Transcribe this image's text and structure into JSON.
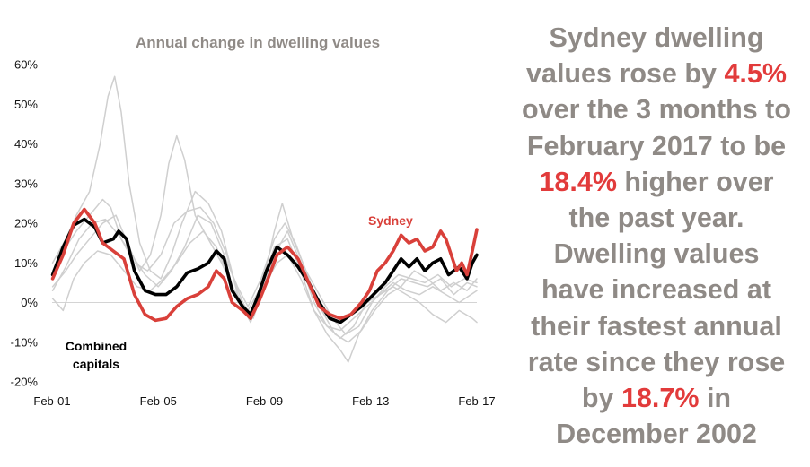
{
  "chart_data": {
    "type": "line",
    "title": "Annual change in dwelling values",
    "xlabel": "",
    "ylabel": "",
    "x_ticks": [
      "Feb-01",
      "Feb-05",
      "Feb-09",
      "Feb-13",
      "Feb-17"
    ],
    "x_range": [
      2001.08,
      2017.17
    ],
    "y_ticks": [
      "-20%",
      "-10%",
      "0%",
      "10%",
      "20%",
      "30%",
      "40%",
      "50%",
      "60%"
    ],
    "ylim": [
      -20,
      60
    ],
    "series": [
      {
        "name": "Sydney",
        "label": "Sydney",
        "color": "#d9403a",
        "points": [
          [
            2001.1,
            6
          ],
          [
            2001.5,
            12
          ],
          [
            2001.9,
            20
          ],
          [
            2002.3,
            23.5
          ],
          [
            2002.7,
            20
          ],
          [
            2003.0,
            15
          ],
          [
            2003.4,
            13
          ],
          [
            2003.8,
            11
          ],
          [
            2004.2,
            2
          ],
          [
            2004.6,
            -3
          ],
          [
            2005.0,
            -4.5
          ],
          [
            2005.4,
            -4
          ],
          [
            2005.8,
            -1
          ],
          [
            2006.2,
            1
          ],
          [
            2006.6,
            2
          ],
          [
            2007.0,
            4
          ],
          [
            2007.3,
            8
          ],
          [
            2007.6,
            6
          ],
          [
            2007.9,
            0
          ],
          [
            2008.3,
            -2
          ],
          [
            2008.6,
            -4
          ],
          [
            2008.9,
            0
          ],
          [
            2009.2,
            5
          ],
          [
            2009.6,
            12
          ],
          [
            2010.0,
            14
          ],
          [
            2010.4,
            11
          ],
          [
            2010.8,
            5
          ],
          [
            2011.2,
            -1
          ],
          [
            2011.6,
            -3
          ],
          [
            2012.0,
            -4
          ],
          [
            2012.4,
            -3
          ],
          [
            2012.8,
            0
          ],
          [
            2013.1,
            3
          ],
          [
            2013.4,
            8
          ],
          [
            2013.7,
            10
          ],
          [
            2014.0,
            13
          ],
          [
            2014.3,
            17
          ],
          [
            2014.6,
            15
          ],
          [
            2014.9,
            16
          ],
          [
            2015.2,
            13
          ],
          [
            2015.5,
            14
          ],
          [
            2015.8,
            18
          ],
          [
            2016.0,
            16
          ],
          [
            2016.2,
            12
          ],
          [
            2016.4,
            8
          ],
          [
            2016.6,
            10
          ],
          [
            2016.8,
            7
          ],
          [
            2017.0,
            13
          ],
          [
            2017.17,
            18.4
          ]
        ]
      },
      {
        "name": "Combined capitals",
        "label": "Combined capitals",
        "color": "#000000",
        "points": [
          [
            2001.1,
            7
          ],
          [
            2001.5,
            14
          ],
          [
            2001.9,
            19.5
          ],
          [
            2002.3,
            21
          ],
          [
            2002.7,
            19
          ],
          [
            2003.0,
            15
          ],
          [
            2003.4,
            16
          ],
          [
            2003.6,
            18
          ],
          [
            2003.9,
            16
          ],
          [
            2004.2,
            8
          ],
          [
            2004.6,
            3
          ],
          [
            2005.0,
            2
          ],
          [
            2005.4,
            2
          ],
          [
            2005.8,
            4
          ],
          [
            2006.2,
            7.5
          ],
          [
            2006.6,
            8.5
          ],
          [
            2007.0,
            10
          ],
          [
            2007.3,
            13
          ],
          [
            2007.6,
            11
          ],
          [
            2007.9,
            3
          ],
          [
            2008.3,
            -1
          ],
          [
            2008.6,
            -3
          ],
          [
            2008.9,
            2
          ],
          [
            2009.2,
            8
          ],
          [
            2009.6,
            14
          ],
          [
            2010.0,
            12
          ],
          [
            2010.4,
            9
          ],
          [
            2010.8,
            5
          ],
          [
            2011.2,
            0
          ],
          [
            2011.6,
            -4
          ],
          [
            2012.0,
            -5
          ],
          [
            2012.4,
            -3
          ],
          [
            2012.8,
            -1
          ],
          [
            2013.1,
            1
          ],
          [
            2013.4,
            3
          ],
          [
            2013.7,
            5
          ],
          [
            2014.0,
            8
          ],
          [
            2014.3,
            11
          ],
          [
            2014.6,
            9
          ],
          [
            2014.9,
            11
          ],
          [
            2015.2,
            8
          ],
          [
            2015.5,
            10
          ],
          [
            2015.8,
            11
          ],
          [
            2016.1,
            7
          ],
          [
            2016.5,
            9
          ],
          [
            2016.8,
            6
          ],
          [
            2017.0,
            10
          ],
          [
            2017.17,
            12
          ]
        ]
      },
      {
        "name": "capital-a",
        "color": "#cfcfcf",
        "points": [
          [
            2001.1,
            10
          ],
          [
            2001.6,
            16
          ],
          [
            2002.0,
            22
          ],
          [
            2002.5,
            28
          ],
          [
            2002.9,
            40
          ],
          [
            2003.2,
            52
          ],
          [
            2003.45,
            57
          ],
          [
            2003.7,
            48
          ],
          [
            2004.0,
            30
          ],
          [
            2004.4,
            15
          ],
          [
            2004.8,
            8
          ],
          [
            2005.2,
            6
          ],
          [
            2005.6,
            12
          ],
          [
            2006.0,
            20
          ],
          [
            2006.5,
            28
          ],
          [
            2007.0,
            25
          ],
          [
            2007.5,
            18
          ],
          [
            2008.0,
            5
          ],
          [
            2008.5,
            -3
          ],
          [
            2009.0,
            2
          ],
          [
            2009.5,
            12
          ],
          [
            2010.0,
            18
          ],
          [
            2010.5,
            10
          ],
          [
            2011.0,
            0
          ],
          [
            2011.5,
            -6
          ],
          [
            2012.0,
            -9
          ],
          [
            2012.5,
            -6
          ],
          [
            2013.0,
            0
          ],
          [
            2013.5,
            2
          ],
          [
            2014.0,
            4
          ],
          [
            2014.5,
            2
          ],
          [
            2015.0,
            0
          ],
          [
            2015.5,
            -3
          ],
          [
            2016.0,
            -5
          ],
          [
            2016.5,
            -2
          ],
          [
            2017.0,
            -4
          ],
          [
            2017.17,
            -5
          ]
        ]
      },
      {
        "name": "capital-b",
        "color": "#cfcfcf",
        "points": [
          [
            2001.1,
            4
          ],
          [
            2001.6,
            8
          ],
          [
            2002.0,
            12
          ],
          [
            2002.5,
            16
          ],
          [
            2003.0,
            20
          ],
          [
            2003.5,
            22
          ],
          [
            2004.0,
            14
          ],
          [
            2004.4,
            8
          ],
          [
            2004.8,
            12
          ],
          [
            2005.2,
            22
          ],
          [
            2005.5,
            35
          ],
          [
            2005.8,
            42
          ],
          [
            2006.1,
            36
          ],
          [
            2006.5,
            22
          ],
          [
            2007.0,
            16
          ],
          [
            2007.5,
            10
          ],
          [
            2008.0,
            3
          ],
          [
            2008.5,
            -2
          ],
          [
            2009.0,
            4
          ],
          [
            2009.5,
            14
          ],
          [
            2010.0,
            16
          ],
          [
            2010.5,
            8
          ],
          [
            2011.0,
            -2
          ],
          [
            2011.5,
            -8
          ],
          [
            2012.0,
            -12
          ],
          [
            2012.3,
            -15
          ],
          [
            2012.7,
            -8
          ],
          [
            2013.2,
            -2
          ],
          [
            2013.8,
            3
          ],
          [
            2014.3,
            6
          ],
          [
            2014.8,
            5
          ],
          [
            2015.3,
            4
          ],
          [
            2015.8,
            6
          ],
          [
            2016.3,
            2
          ],
          [
            2016.8,
            5
          ],
          [
            2017.17,
            4
          ]
        ]
      },
      {
        "name": "capital-c",
        "color": "#cfcfcf",
        "points": [
          [
            2001.1,
            8
          ],
          [
            2001.6,
            14
          ],
          [
            2002.0,
            18
          ],
          [
            2002.5,
            22
          ],
          [
            2003.0,
            26
          ],
          [
            2003.3,
            24
          ],
          [
            2003.7,
            16
          ],
          [
            2004.2,
            10
          ],
          [
            2004.7,
            8
          ],
          [
            2005.2,
            12
          ],
          [
            2005.7,
            20
          ],
          [
            2006.2,
            23
          ],
          [
            2006.7,
            24
          ],
          [
            2007.2,
            20
          ],
          [
            2007.7,
            12
          ],
          [
            2008.2,
            0
          ],
          [
            2008.6,
            -5
          ],
          [
            2009.0,
            3
          ],
          [
            2009.5,
            18
          ],
          [
            2009.8,
            25
          ],
          [
            2010.2,
            16
          ],
          [
            2010.7,
            8
          ],
          [
            2011.2,
            2
          ],
          [
            2011.7,
            -4
          ],
          [
            2012.2,
            -8
          ],
          [
            2012.7,
            -6
          ],
          [
            2013.2,
            0
          ],
          [
            2013.7,
            4
          ],
          [
            2014.2,
            7
          ],
          [
            2014.7,
            6
          ],
          [
            2015.2,
            5
          ],
          [
            2015.7,
            7
          ],
          [
            2016.2,
            4
          ],
          [
            2016.7,
            6
          ],
          [
            2017.17,
            5
          ]
        ]
      },
      {
        "name": "capital-d",
        "color": "#cfcfcf",
        "points": [
          [
            2001.1,
            1
          ],
          [
            2001.5,
            -2
          ],
          [
            2001.9,
            6
          ],
          [
            2002.3,
            10
          ],
          [
            2002.8,
            13
          ],
          [
            2003.3,
            12
          ],
          [
            2003.8,
            8
          ],
          [
            2004.3,
            4
          ],
          [
            2004.8,
            3
          ],
          [
            2005.3,
            6
          ],
          [
            2005.8,
            10
          ],
          [
            2006.3,
            15
          ],
          [
            2006.8,
            18
          ],
          [
            2007.3,
            14
          ],
          [
            2007.8,
            6
          ],
          [
            2008.3,
            -2
          ],
          [
            2008.7,
            -4
          ],
          [
            2009.1,
            4
          ],
          [
            2009.6,
            10
          ],
          [
            2010.0,
            12
          ],
          [
            2010.5,
            6
          ],
          [
            2011.0,
            -2
          ],
          [
            2011.5,
            -6
          ],
          [
            2012.0,
            -7
          ],
          [
            2012.5,
            -4
          ],
          [
            2013.0,
            -1
          ],
          [
            2013.5,
            2
          ],
          [
            2014.0,
            5
          ],
          [
            2014.5,
            3
          ],
          [
            2015.0,
            2
          ],
          [
            2015.5,
            4
          ],
          [
            2016.0,
            2
          ],
          [
            2016.5,
            0
          ],
          [
            2017.17,
            3
          ]
        ]
      },
      {
        "name": "capital-e",
        "color": "#cfcfcf",
        "points": [
          [
            2001.1,
            3
          ],
          [
            2001.6,
            9
          ],
          [
            2002.1,
            16
          ],
          [
            2002.6,
            20
          ],
          [
            2003.1,
            21
          ],
          [
            2003.6,
            17
          ],
          [
            2004.1,
            12
          ],
          [
            2004.6,
            7
          ],
          [
            2005.1,
            4
          ],
          [
            2005.6,
            8
          ],
          [
            2006.1,
            14
          ],
          [
            2006.6,
            22
          ],
          [
            2007.1,
            20
          ],
          [
            2007.6,
            12
          ],
          [
            2008.1,
            4
          ],
          [
            2008.5,
            -1
          ],
          [
            2009.0,
            6
          ],
          [
            2009.5,
            16
          ],
          [
            2009.9,
            20
          ],
          [
            2010.3,
            15
          ],
          [
            2010.8,
            6
          ],
          [
            2011.3,
            -2
          ],
          [
            2011.8,
            -8
          ],
          [
            2012.3,
            -10
          ],
          [
            2012.8,
            -7
          ],
          [
            2013.3,
            -2
          ],
          [
            2013.8,
            2
          ],
          [
            2014.3,
            4
          ],
          [
            2014.8,
            8
          ],
          [
            2015.3,
            6
          ],
          [
            2015.8,
            3
          ],
          [
            2016.3,
            5
          ],
          [
            2016.8,
            3
          ],
          [
            2017.17,
            6
          ]
        ]
      }
    ],
    "annotations": [
      {
        "text": "Sydney",
        "color": "#d9403a"
      },
      {
        "text_lines": [
          "Combined",
          "capitals"
        ],
        "color": "#000000"
      }
    ]
  },
  "text_panel": {
    "lines": [
      [
        {
          "t": "Sydney dwelling"
        }
      ],
      [
        {
          "t": "values rose by "
        },
        {
          "t": "4.5%",
          "hl": true
        }
      ],
      [
        {
          "t": "over the 3 months to"
        }
      ],
      [
        {
          "t": "February 2017 to be"
        }
      ],
      [
        {
          "t": "18.4%",
          "hl": true
        },
        {
          "t": " higher over"
        }
      ],
      [
        {
          "t": "the past year."
        }
      ],
      [
        {
          "t": "Dwelling values"
        }
      ],
      [
        {
          "t": "have increased at"
        }
      ],
      [
        {
          "t": "their fastest annual"
        }
      ],
      [
        {
          "t": "rate since they rose"
        }
      ],
      [
        {
          "t": "by "
        },
        {
          "t": "18.7%",
          "hl": true
        },
        {
          "t": " in"
        }
      ],
      [
        {
          "t": "December 2002"
        }
      ]
    ]
  }
}
